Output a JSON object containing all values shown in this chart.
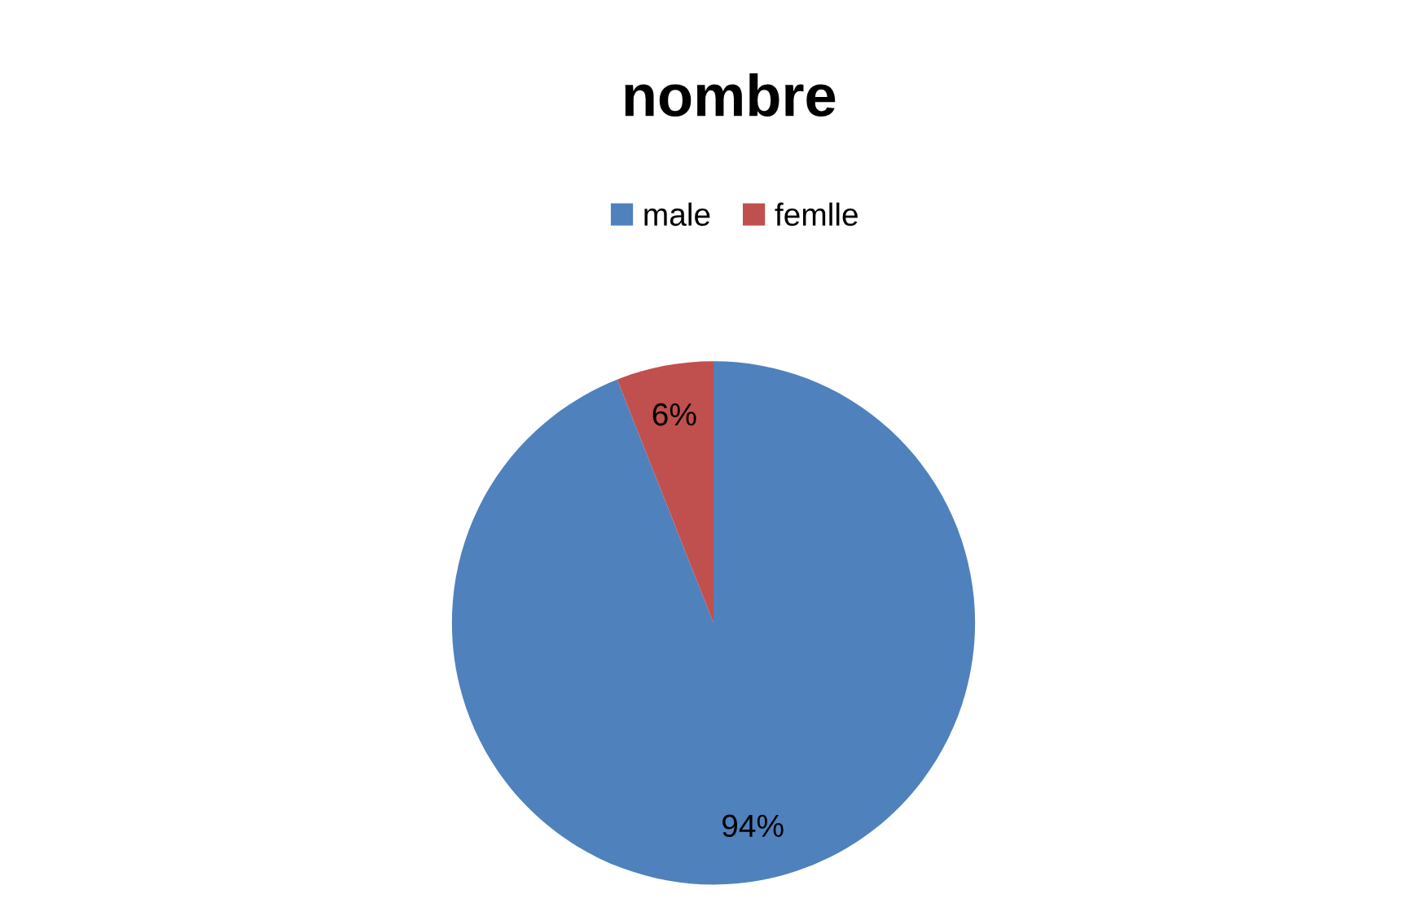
{
  "chart_data": {
    "type": "pie",
    "title": "nombre",
    "categories": [
      "male",
      "femlle"
    ],
    "values": [
      94,
      6
    ],
    "colors": [
      "#4f81bd",
      "#c0504d"
    ],
    "value_labels": [
      "94%",
      "6%"
    ],
    "legend": "top"
  }
}
